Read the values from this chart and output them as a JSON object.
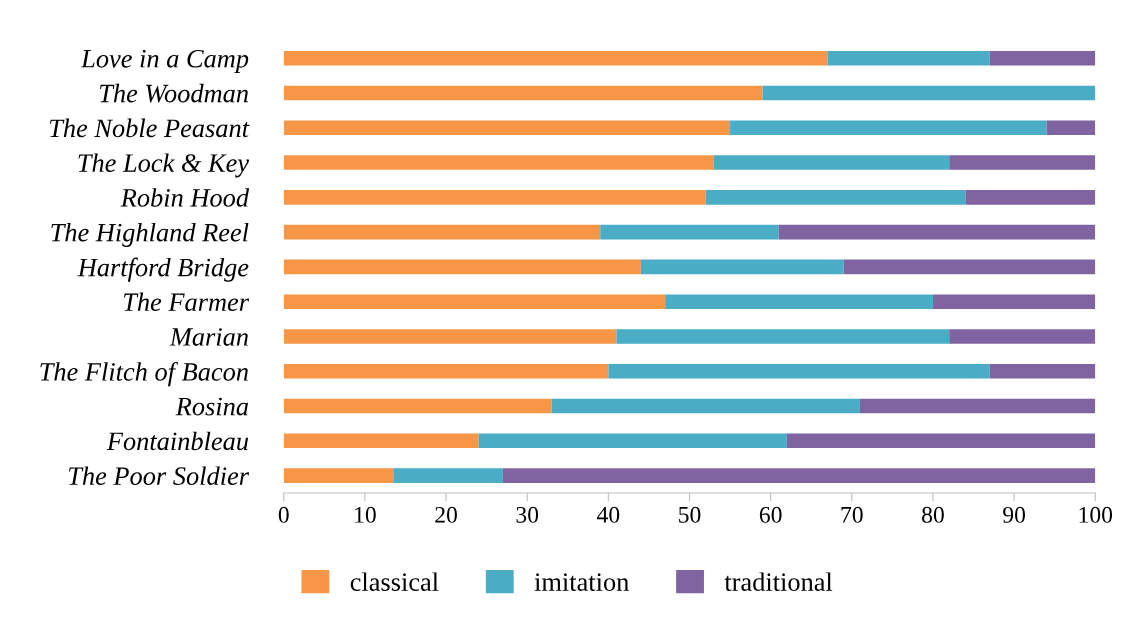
{
  "chart_data": {
    "type": "bar",
    "orientation": "horizontal",
    "stacked": true,
    "categories": [
      "Love in a Camp",
      "The Woodman",
      "The Noble Peasant",
      "The Lock & Key",
      "Robin Hood",
      "The Highland Reel",
      "Hartford Bridge",
      "The Farmer",
      "Marian",
      "The Flitch of Bacon",
      "Rosina",
      "Fontainbleau",
      "The Poor Soldier"
    ],
    "series": [
      {
        "name": "classical",
        "color": "#f79646",
        "values": [
          67,
          59,
          55,
          53,
          52,
          39,
          44,
          47,
          41,
          40,
          33,
          24,
          13.5
        ]
      },
      {
        "name": "imitation",
        "color": "#4bacc6",
        "values": [
          20,
          41,
          39,
          29,
          32,
          22,
          25,
          33,
          41,
          47,
          38,
          38,
          13.5
        ]
      },
      {
        "name": "traditional",
        "color": "#8064a2",
        "values": [
          13,
          0,
          6,
          18,
          16,
          39,
          31,
          20,
          18,
          13,
          29,
          38,
          73
        ]
      }
    ],
    "xlim": [
      0,
      100
    ],
    "xticks": [
      0,
      10,
      20,
      30,
      40,
      50,
      60,
      70,
      80,
      90,
      100
    ],
    "grid": false,
    "legend": "bottom"
  }
}
